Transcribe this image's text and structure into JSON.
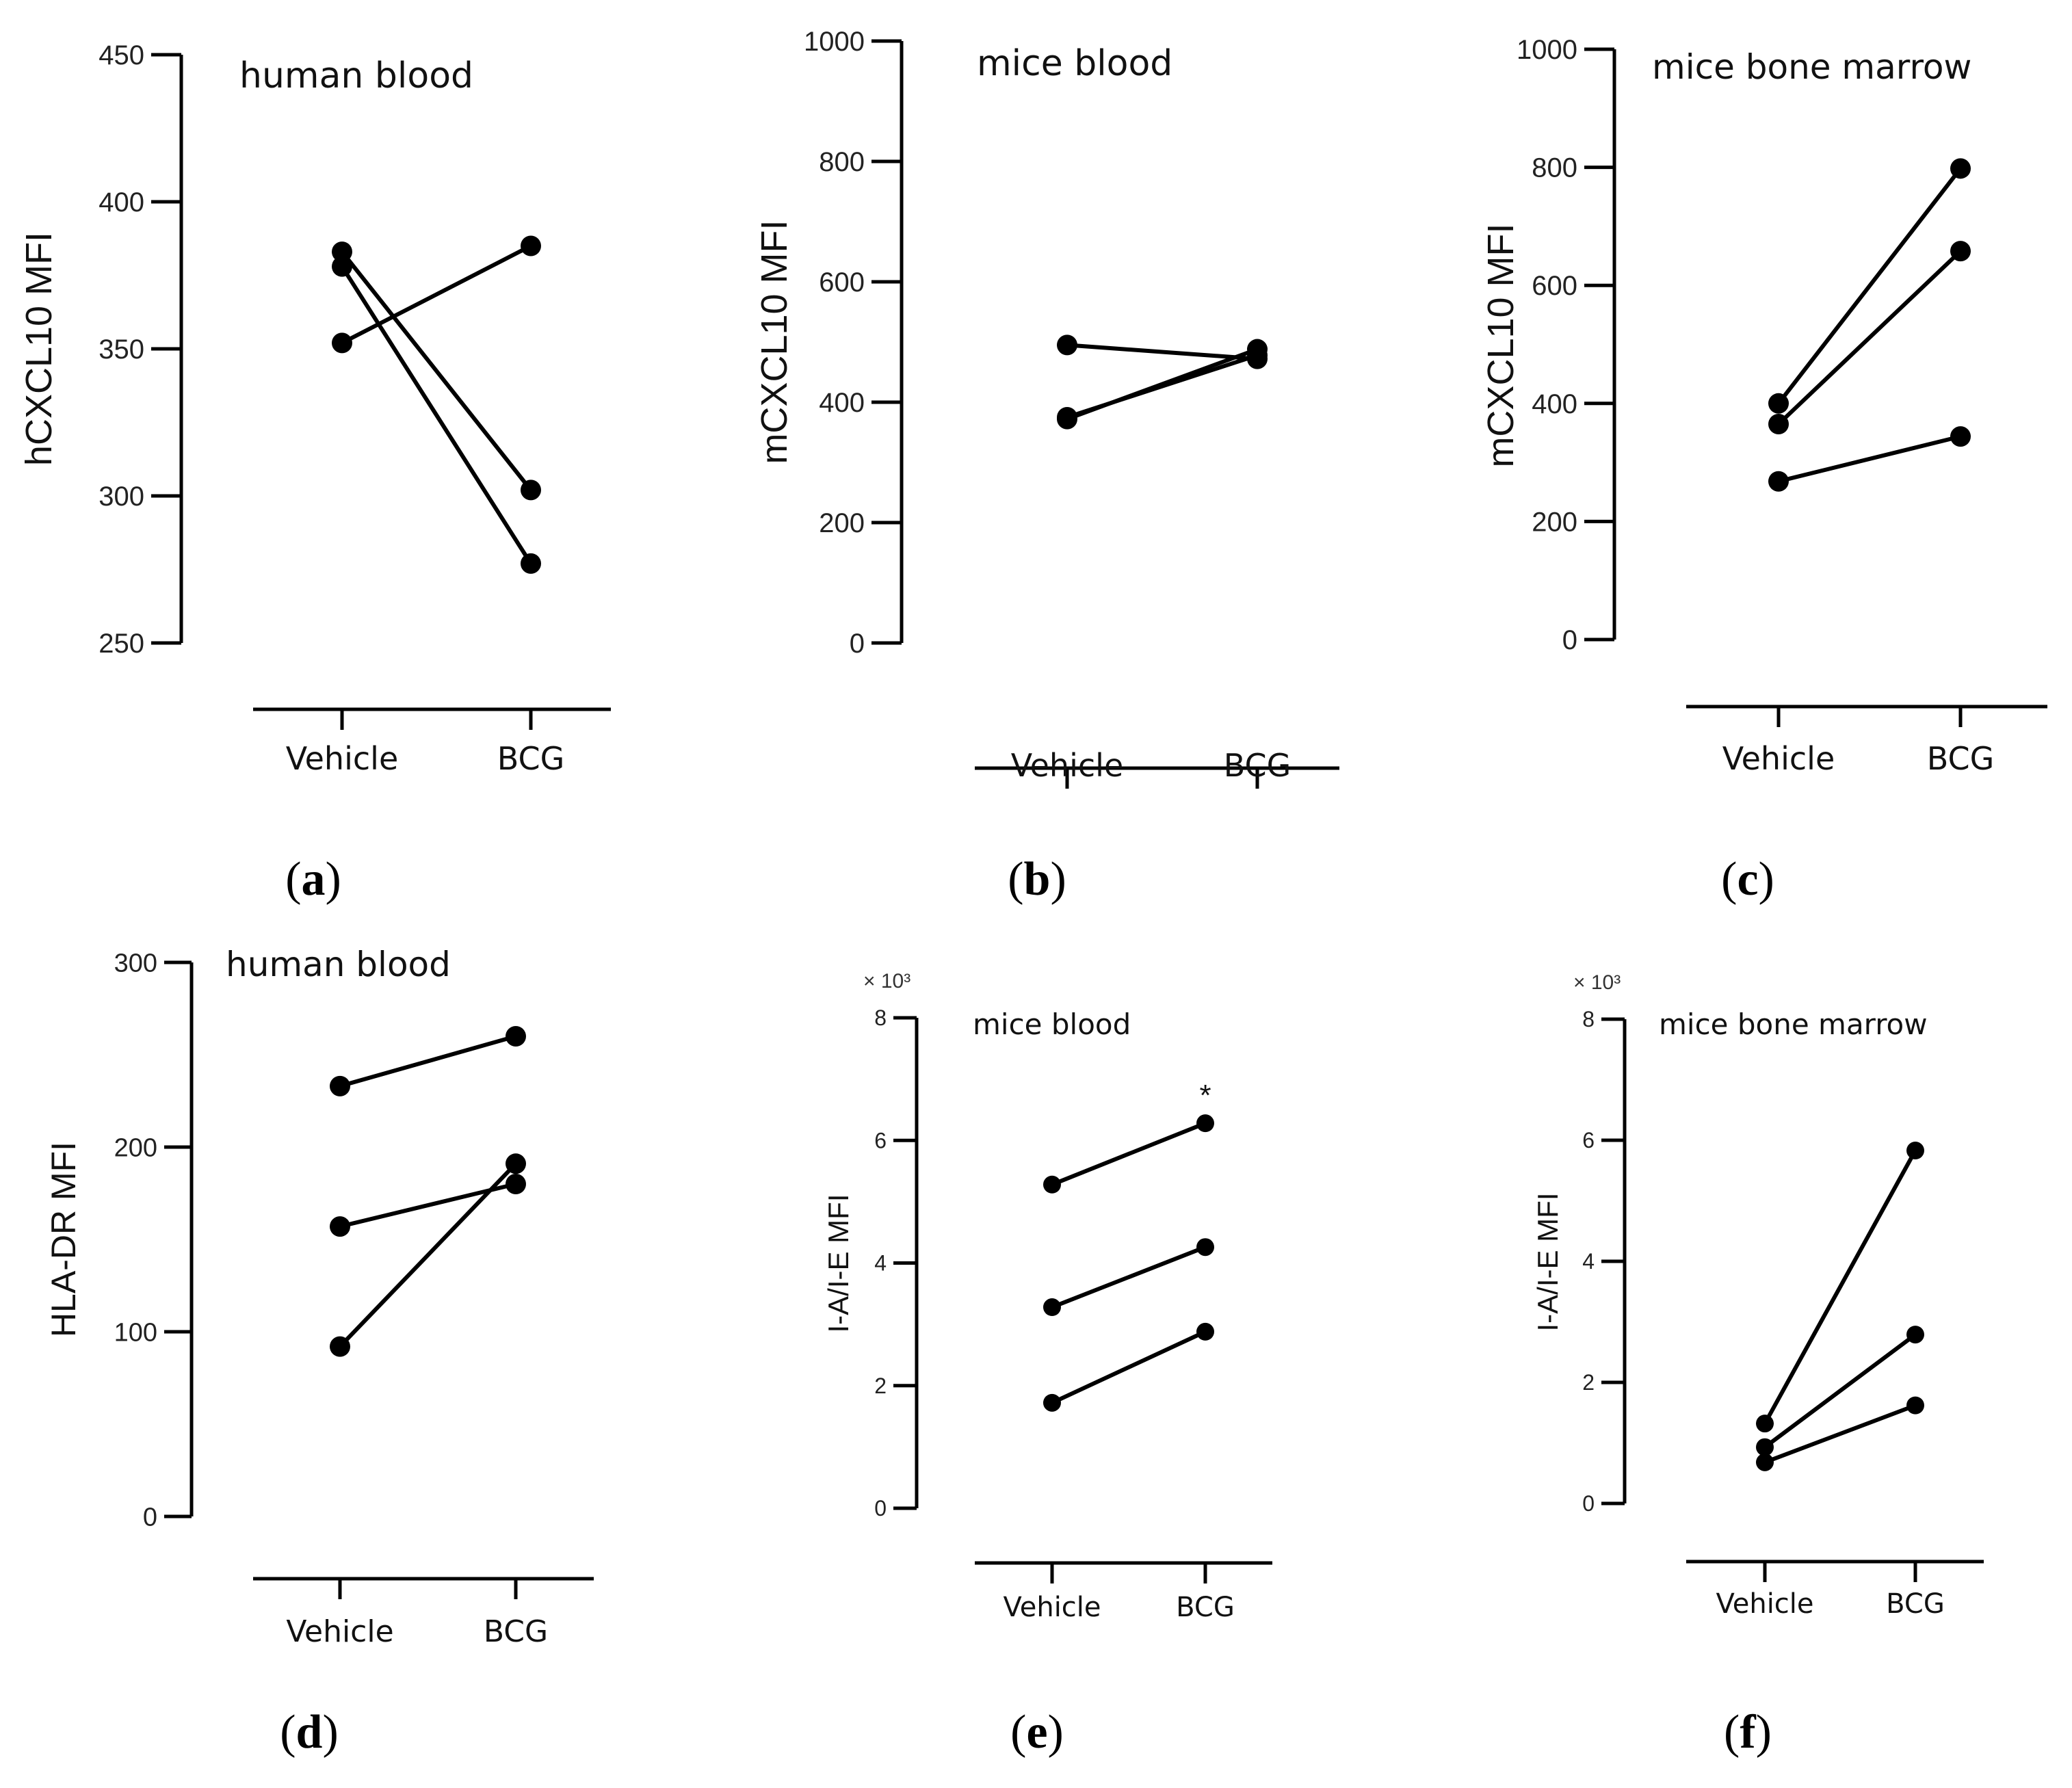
{
  "colors": {
    "ink": "#000000",
    "background": "#ffffff"
  },
  "chart_data": [
    {
      "panel": "(a)",
      "type": "scatter",
      "title": "human blood",
      "ylabel": "hCXCL10 MFI",
      "categories": [
        "Vehicle",
        "BCG"
      ],
      "ylim": [
        250,
        450
      ],
      "yticks": [
        250,
        300,
        350,
        400,
        450
      ],
      "series": [
        {
          "name": "pair 1",
          "values": [
            383,
            302
          ]
        },
        {
          "name": "pair 2",
          "values": [
            378,
            277
          ]
        },
        {
          "name": "pair 3",
          "values": [
            352,
            385
          ]
        }
      ]
    },
    {
      "panel": "(b)",
      "type": "scatter",
      "title": "mice blood",
      "ylabel": "mCXCL10 MFI",
      "categories": [
        "Vehicle",
        "BCG"
      ],
      "ylim": [
        0,
        1000
      ],
      "yticks": [
        0,
        200,
        400,
        600,
        800,
        1000
      ],
      "series": [
        {
          "name": "pair 1",
          "values": [
            495,
            472
          ]
        },
        {
          "name": "pair 2",
          "values": [
            372,
            488
          ]
        },
        {
          "name": "pair 3",
          "values": [
            375,
            478
          ]
        }
      ]
    },
    {
      "panel": "(c)",
      "type": "scatter",
      "title": "mice bone marrow",
      "ylabel": "mCXCL10 MFI",
      "categories": [
        "Vehicle",
        "BCG"
      ],
      "ylim": [
        0,
        1000
      ],
      "yticks": [
        0,
        200,
        400,
        600,
        800,
        1000
      ],
      "series": [
        {
          "name": "pair 1",
          "values": [
            400,
            798
          ]
        },
        {
          "name": "pair 2",
          "values": [
            365,
            658
          ]
        },
        {
          "name": "pair 3",
          "values": [
            268,
            344
          ]
        }
      ]
    },
    {
      "panel": "(d)",
      "type": "scatter",
      "title": "human blood",
      "ylabel": "HLA-DR MFI",
      "categories": [
        "Vehicle",
        "BCG"
      ],
      "ylim": [
        0,
        300
      ],
      "yticks": [
        0,
        100,
        200,
        300
      ],
      "series": [
        {
          "name": "pair 1",
          "values": [
            233,
            260
          ]
        },
        {
          "name": "pair 2",
          "values": [
            157,
            180
          ]
        },
        {
          "name": "pair 3",
          "values": [
            92,
            191
          ]
        }
      ]
    },
    {
      "panel": "(e)",
      "type": "scatter",
      "title": "mice blood",
      "ylabel": "I-A/I-E MFI",
      "multiplier": "× 10³",
      "annotation": "*",
      "categories": [
        "Vehicle",
        "BCG"
      ],
      "ylim": [
        0,
        8
      ],
      "yticks": [
        0,
        2,
        4,
        6,
        8
      ],
      "series": [
        {
          "name": "pair 1",
          "values": [
            5.28,
            6.28
          ]
        },
        {
          "name": "pair 2",
          "values": [
            3.28,
            4.26
          ]
        },
        {
          "name": "pair 3",
          "values": [
            1.72,
            2.88
          ]
        }
      ]
    },
    {
      "panel": "(f)",
      "type": "scatter",
      "title": "mice bone marrow",
      "ylabel": "I-A/I-E MFI",
      "multiplier": "× 10³",
      "categories": [
        "Vehicle",
        "BCG"
      ],
      "ylim": [
        0,
        8
      ],
      "yticks": [
        0,
        2,
        4,
        6,
        8
      ],
      "series": [
        {
          "name": "pair 1",
          "values": [
            1.32,
            5.83
          ]
        },
        {
          "name": "pair 2",
          "values": [
            0.93,
            2.79
          ]
        },
        {
          "name": "pair 3",
          "values": [
            0.68,
            1.62
          ]
        }
      ]
    }
  ]
}
